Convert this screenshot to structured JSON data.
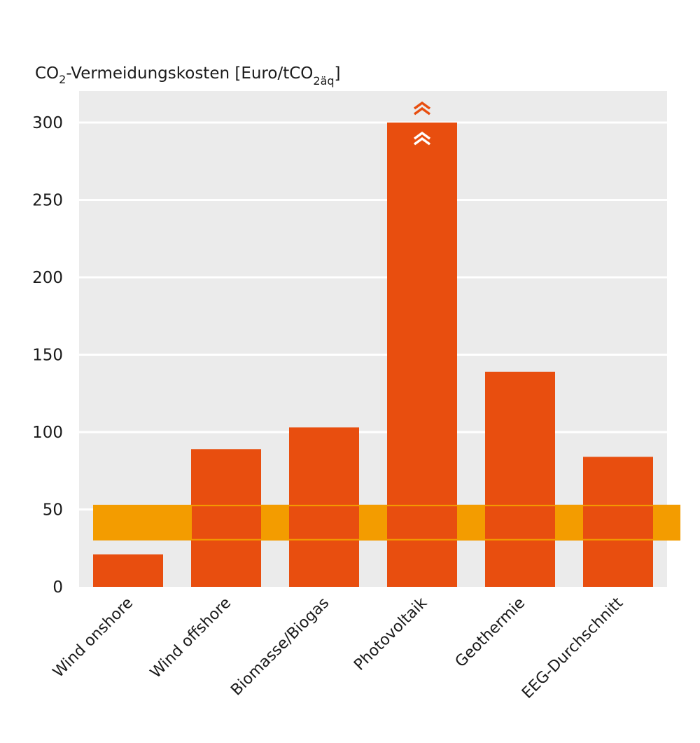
{
  "chart_data": {
    "type": "bar",
    "title": "",
    "ylabel": {
      "prefix": "CO",
      "prefix_sub": "2",
      "main": "-Vermeidungskosten [Euro/tCO",
      "sub": "2äq",
      "suffix": "]"
    },
    "xlabel": "",
    "categories": [
      "Wind onshore",
      "Wind offshore",
      "Biomasse/Biogas",
      "Photovoltaik",
      "Geothermie",
      "EEG-Durchschnitt"
    ],
    "values": [
      21,
      89,
      103,
      300,
      139,
      84
    ],
    "ylim": [
      0,
      300
    ],
    "yticks": [
      0,
      50,
      100,
      150,
      200,
      250,
      300
    ],
    "truncated_category": "Photovoltaik",
    "band": {
      "low": 30,
      "high": 53
    },
    "grid": true,
    "colors": {
      "bar": "#e84e0f",
      "band": "#f39c00",
      "plot_bg": "#ebebeb",
      "grid": "#ffffff"
    }
  }
}
